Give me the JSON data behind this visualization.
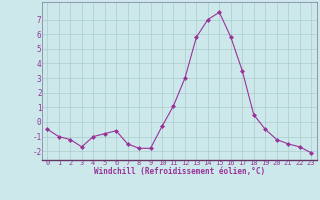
{
  "x": [
    0,
    1,
    2,
    3,
    4,
    5,
    6,
    7,
    8,
    9,
    10,
    11,
    12,
    13,
    14,
    15,
    16,
    17,
    18,
    19,
    20,
    21,
    22,
    23
  ],
  "y": [
    -0.5,
    -1.0,
    -1.2,
    -1.7,
    -1.0,
    -0.8,
    -0.6,
    -1.5,
    -1.8,
    -1.8,
    -0.3,
    1.1,
    3.0,
    5.8,
    7.0,
    7.5,
    5.8,
    3.5,
    0.5,
    -0.5,
    -1.2,
    -1.5,
    -1.7,
    -2.1
  ],
  "line_color": "#993399",
  "marker": "D",
  "marker_size": 2.0,
  "bg_color": "#cce8eb",
  "grid_color": "#aacccc",
  "xlabel": "Windchill (Refroidissement éolien,°C)",
  "ylabel": "",
  "xlim": [
    -0.5,
    23.5
  ],
  "ylim": [
    -2.6,
    8.2
  ],
  "yticks": [
    -2,
    -1,
    0,
    1,
    2,
    3,
    4,
    5,
    6,
    7
  ],
  "xticks": [
    0,
    1,
    2,
    3,
    4,
    5,
    6,
    7,
    8,
    9,
    10,
    11,
    12,
    13,
    14,
    15,
    16,
    17,
    18,
    19,
    20,
    21,
    22,
    23
  ],
  "tick_color": "#993399",
  "label_color": "#993399",
  "spine_color": "#777799"
}
